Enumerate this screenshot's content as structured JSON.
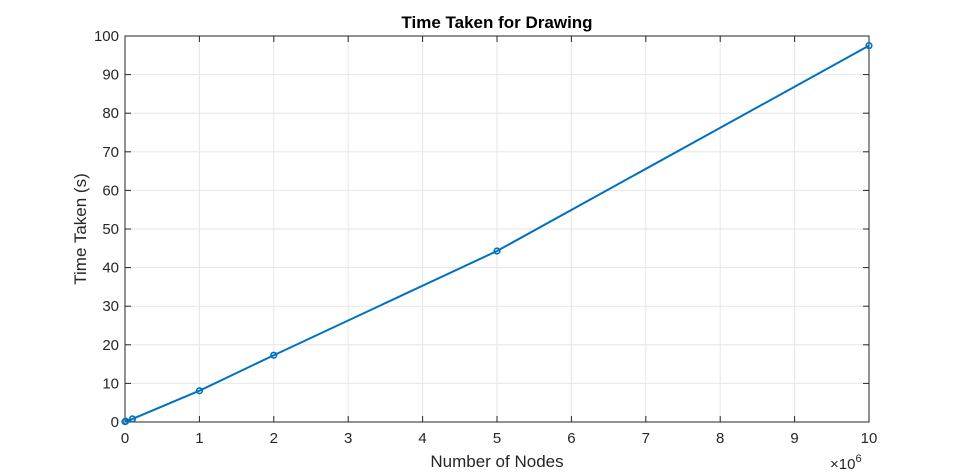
{
  "chart_data": {
    "type": "line",
    "title": "Time Taken for Drawing",
    "xlabel": "Number of Nodes",
    "ylabel": "Time Taken (s)",
    "x_exponent_label": "×10",
    "x_exponent_power": "6",
    "x_scale": 1000000,
    "xlim": [
      0,
      10000000
    ],
    "ylim": [
      0,
      100
    ],
    "xticks": [
      0,
      1,
      2,
      3,
      4,
      5,
      6,
      7,
      8,
      9,
      10
    ],
    "yticks": [
      0,
      10,
      20,
      30,
      40,
      50,
      60,
      70,
      80,
      90,
      100
    ],
    "grid": true,
    "series": [
      {
        "color": "#0072BD",
        "points": [
          {
            "x": 0,
            "y": 0.1
          },
          {
            "x": 10000,
            "y": 0.2
          },
          {
            "x": 100000,
            "y": 0.8
          },
          {
            "x": 1000000,
            "y": 8.1
          },
          {
            "x": 2000000,
            "y": 17.3
          },
          {
            "x": 5000000,
            "y": 44.3
          },
          {
            "x": 10000000,
            "y": 97.5
          }
        ]
      }
    ]
  }
}
